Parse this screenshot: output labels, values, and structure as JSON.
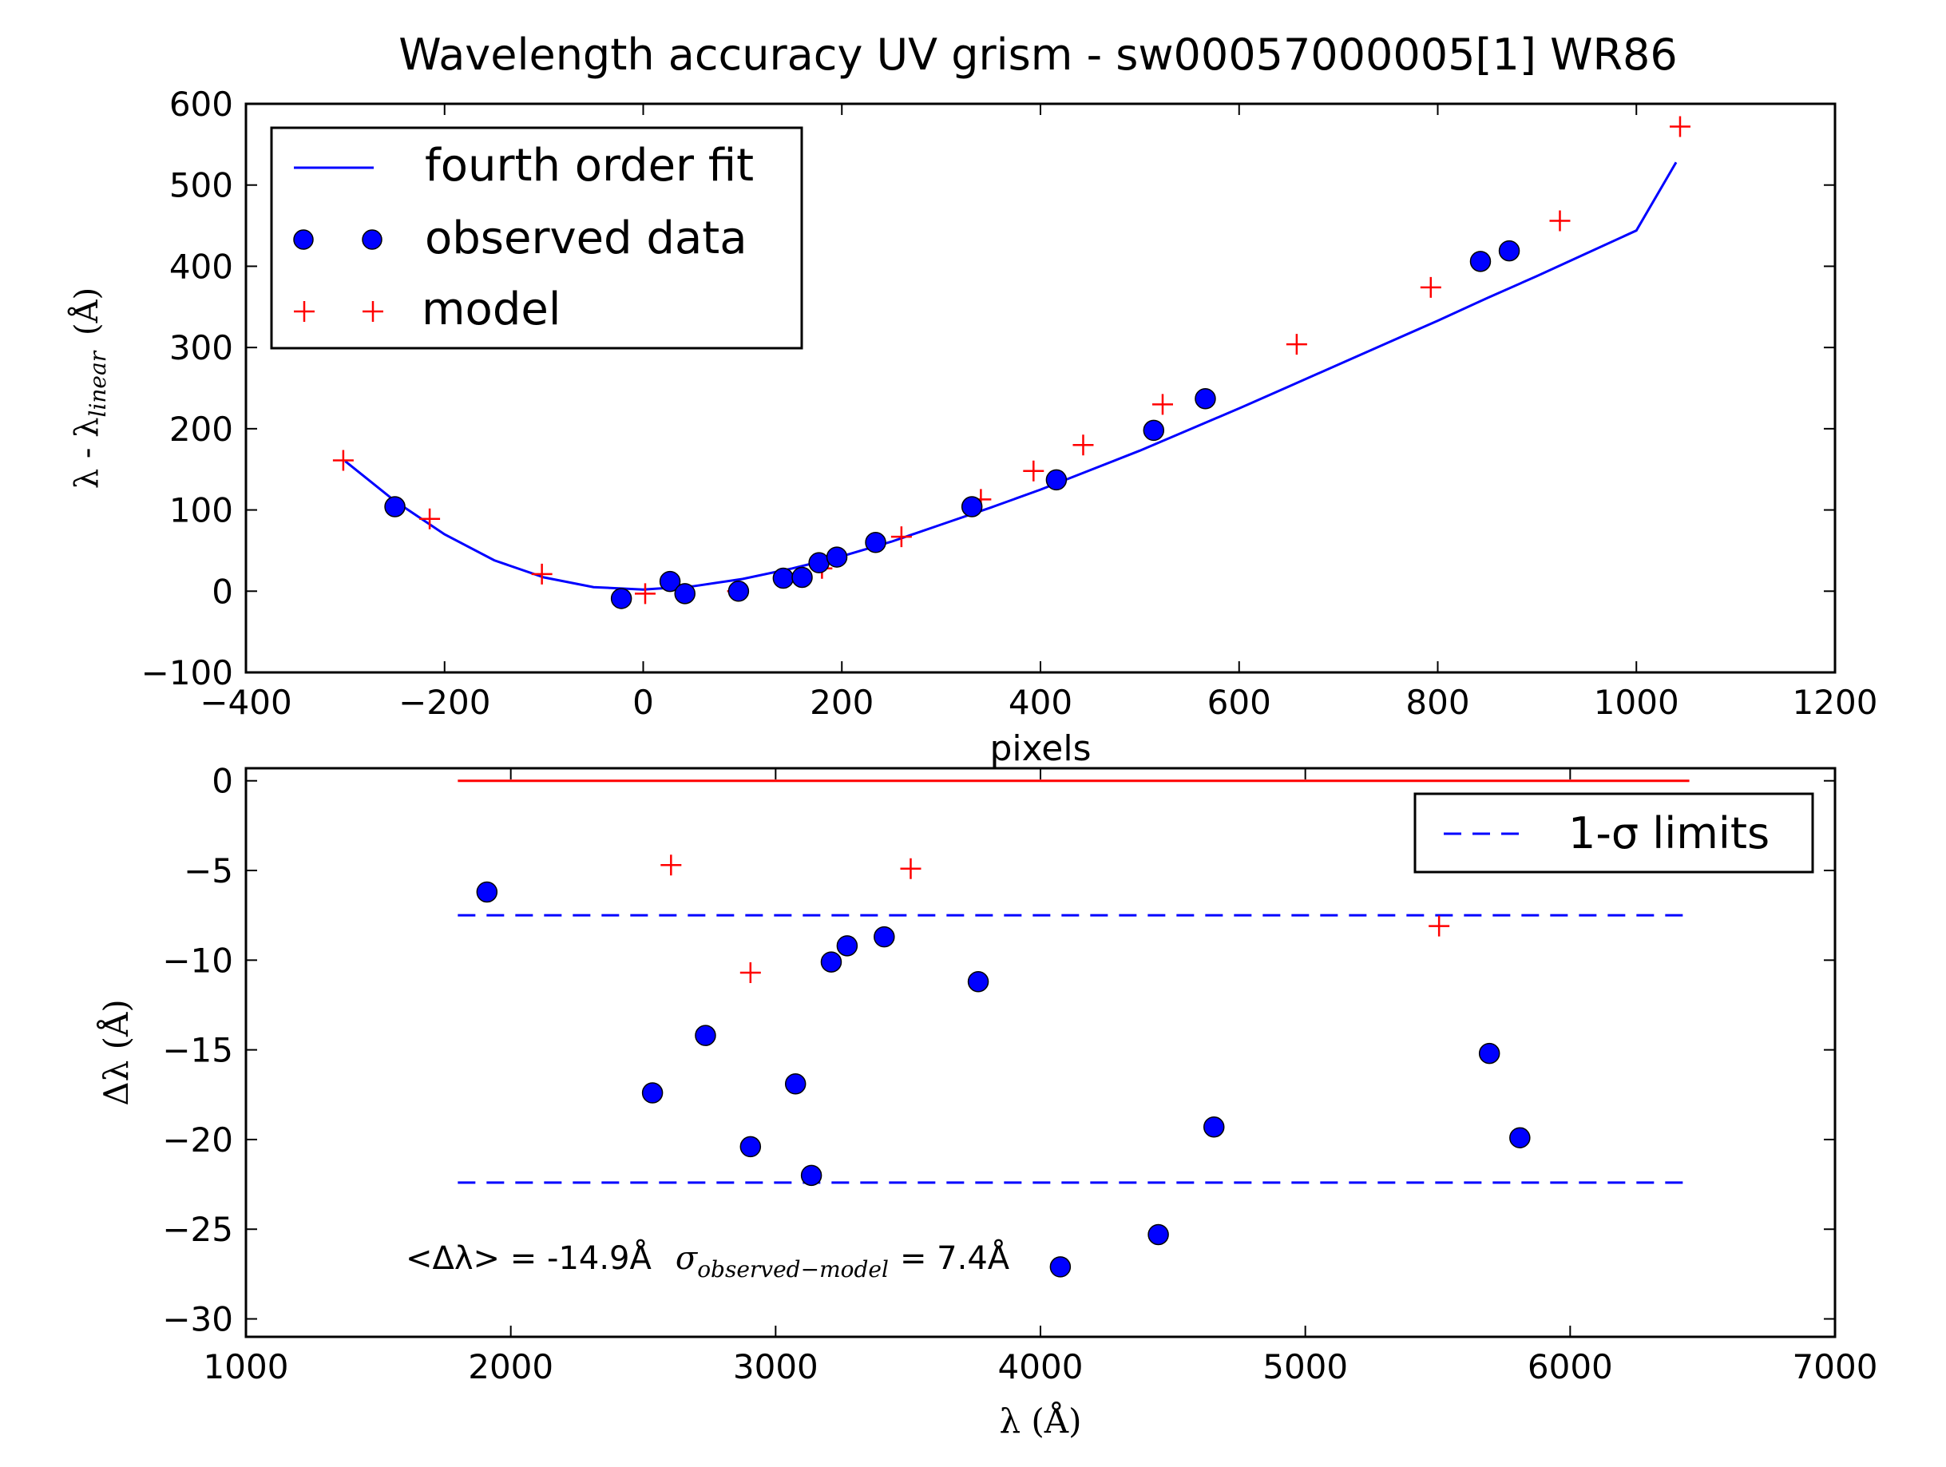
{
  "chart_data": [
    {
      "type": "scatter",
      "title": "Wavelength accuracy UV grism - sw00057000005[1] WR86",
      "xlabel": "pixels",
      "ylabel": {
        "main": "λ - λ",
        "subscript": "linear",
        "unit": "(Å)"
      },
      "xlim": [
        -400,
        1200
      ],
      "ylim": [
        -100,
        600
      ],
      "xticks": [
        -400,
        -200,
        0,
        200,
        400,
        600,
        800,
        1000,
        1200
      ],
      "yticks": [
        -100,
        0,
        100,
        200,
        300,
        400,
        500,
        600
      ],
      "grid": false,
      "legend_position": "upper-left",
      "series": [
        {
          "name": "fourth order fit",
          "kind": "line",
          "color": "#0000ff",
          "x": [
            -300,
            -250,
            -200,
            -150,
            -100,
            -50,
            0,
            50,
            100,
            150,
            200,
            250,
            300,
            350,
            400,
            450,
            500,
            550,
            600,
            650,
            700,
            750,
            800,
            850,
            900,
            950,
            1000,
            1040
          ],
          "y": [
            160,
            111,
            70,
            38,
            17,
            5,
            2,
            6,
            15,
            28,
            43,
            61,
            82,
            103,
            125,
            149,
            173,
            199,
            225,
            252,
            279,
            306,
            333,
            361,
            388,
            416,
            444,
            528
          ]
        },
        {
          "name": "observed data",
          "kind": "marker",
          "color": "#0000ff",
          "x": [
            -250,
            -22,
            27,
            42,
            96,
            141,
            160,
            177,
            195,
            234,
            331,
            416,
            514,
            566,
            843,
            872
          ],
          "y": [
            104,
            -9,
            12,
            -3,
            0,
            16,
            17,
            35,
            42,
            60,
            104,
            137,
            198,
            237,
            406,
            419
          ]
        },
        {
          "name": "model",
          "kind": "plus",
          "color": "#ff0000",
          "x": [
            -302,
            -215,
            -102,
            2,
            95,
            180,
            260,
            340,
            393,
            443,
            523,
            658,
            793,
            923,
            1044
          ],
          "y": [
            161,
            89,
            21,
            -3,
            0,
            28,
            67,
            113,
            148,
            180,
            230,
            304,
            374,
            456,
            572
          ]
        }
      ]
    },
    {
      "type": "scatter",
      "title": "",
      "xlabel": "λ (Å)",
      "ylabel": "Δλ (Å)",
      "xlim": [
        1000,
        7000
      ],
      "ylim": [
        -31,
        0.7
      ],
      "xticks": [
        1000,
        2000,
        3000,
        4000,
        5000,
        6000,
        7000
      ],
      "yticks": [
        0,
        -5,
        -10,
        -15,
        -20,
        -25,
        -30
      ],
      "grid": false,
      "legend_position": "upper-right",
      "annotation": {
        "text_left": "<Δλ> = -14.9Å",
        "sigma": "σ",
        "sigma_subscript": "observed−model",
        "text_right": "= 7.4Å"
      },
      "hlines": [
        {
          "y": 0,
          "xmin": 1800,
          "xmax": 6450,
          "color": "#ff0000",
          "style": "solid"
        },
        {
          "y": -7.5,
          "xmin": 1800,
          "xmax": 6450,
          "color": "#0000ff",
          "style": "dashed"
        },
        {
          "y": -22.4,
          "xmin": 1800,
          "xmax": 6450,
          "color": "#0000ff",
          "style": "dashed"
        }
      ],
      "series": [
        {
          "name": "1-σ limits",
          "kind": "dashed-line",
          "color": "#0000ff"
        },
        {
          "name": "",
          "kind": "marker",
          "color": "#0000ff",
          "x": [
            1910,
            2535,
            2735,
            2905,
            3075,
            3135,
            3210,
            3270,
            3410,
            3765,
            4075,
            4445,
            4655,
            5695,
            5810
          ],
          "y": [
            -6.2,
            -17.4,
            -14.2,
            -20.4,
            -16.9,
            -22.0,
            -10.1,
            -9.2,
            -8.7,
            -11.2,
            -27.1,
            -25.3,
            -19.3,
            -15.2,
            -19.9
          ]
        },
        {
          "name": "",
          "kind": "plus",
          "color": "#ff0000",
          "x": [
            2605,
            2905,
            3210,
            3510,
            5505
          ],
          "y": [
            -4.7,
            -10.7,
            -10.1,
            -4.9,
            -8.1
          ]
        }
      ]
    }
  ]
}
